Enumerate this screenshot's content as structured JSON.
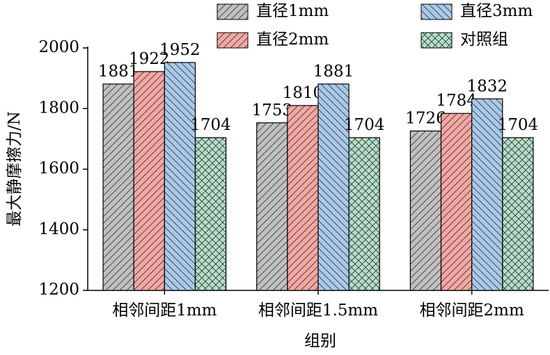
{
  "chart_data": {
    "type": "bar",
    "categories": [
      "相邻间距1mm",
      "相邻间距1.5mm",
      "相邻间距2mm"
    ],
    "series": [
      {
        "name": "直径1mm",
        "color": "#c0c0c0",
        "hatch": "/",
        "values": [
          1881,
          1753,
          1726
        ]
      },
      {
        "name": "直径2mm",
        "color": "#f4a7a3",
        "hatch": "/",
        "values": [
          1922,
          1810,
          1784
        ]
      },
      {
        "name": "直径3mm",
        "color": "#a9c9ea",
        "hatch": "\\",
        "values": [
          1952,
          1881,
          1832
        ]
      },
      {
        "name": "对照组",
        "color": "#b3dfc8",
        "hatch": "x",
        "values": [
          1704,
          1704,
          1704
        ]
      }
    ],
    "xlabel": "组别",
    "ylabel": "最大静摩擦力/N",
    "ylim": [
      1200,
      2000
    ],
    "yticks": [
      1200,
      1400,
      1600,
      1800,
      2000
    ],
    "legend": "upper right",
    "grid": false
  }
}
